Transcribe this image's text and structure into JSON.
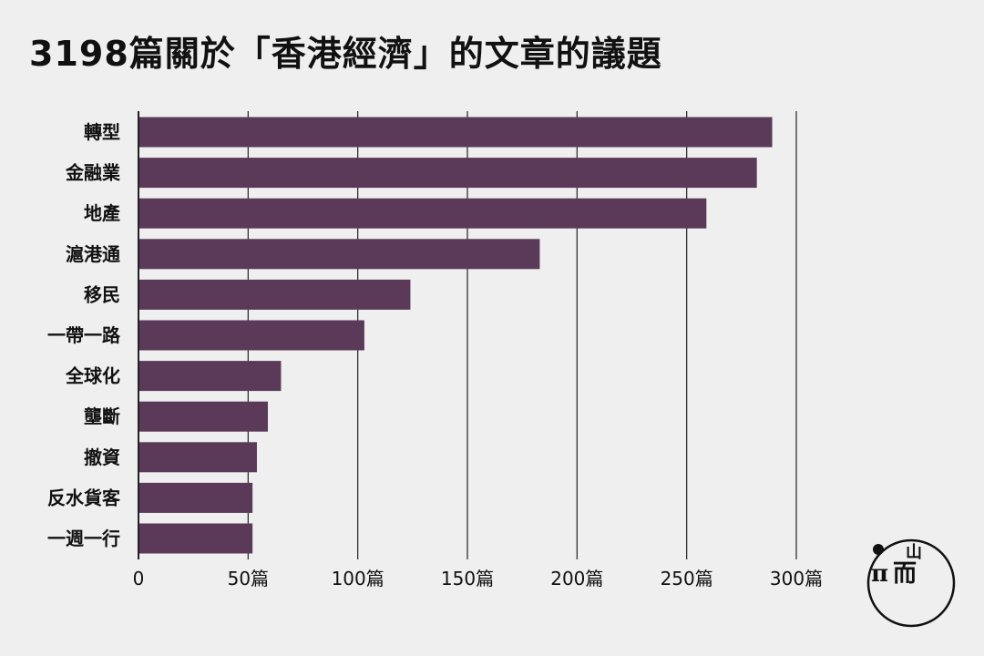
{
  "title": "3198篇關於「香港經濟」的文章的議題",
  "chart_data": {
    "type": "bar",
    "orientation": "horizontal",
    "title": "3198篇關於「香港經濟」的文章的議題",
    "xlabel": "",
    "ylabel": "",
    "categories": [
      "轉型",
      "金融業",
      "地產",
      "滬港通",
      "移民",
      "一帶一路",
      "全球化",
      "壟斷",
      "撤資",
      "反水貨客",
      "一週一行"
    ],
    "values": [
      289,
      282,
      259,
      183,
      124,
      103,
      65,
      59,
      54,
      52,
      52
    ],
    "xlim": [
      0,
      300
    ],
    "xticks": [
      0,
      50,
      100,
      150,
      200,
      250,
      300
    ],
    "xtick_labels": [
      "0",
      "50篇",
      "100篇",
      "150篇",
      "200篇",
      "250篇",
      "300篇"
    ],
    "grid": "vertical",
    "bar_color": "#5a3a58"
  },
  "logo": {
    "text_top": "山",
    "text_left": "π",
    "text_right": "而"
  }
}
